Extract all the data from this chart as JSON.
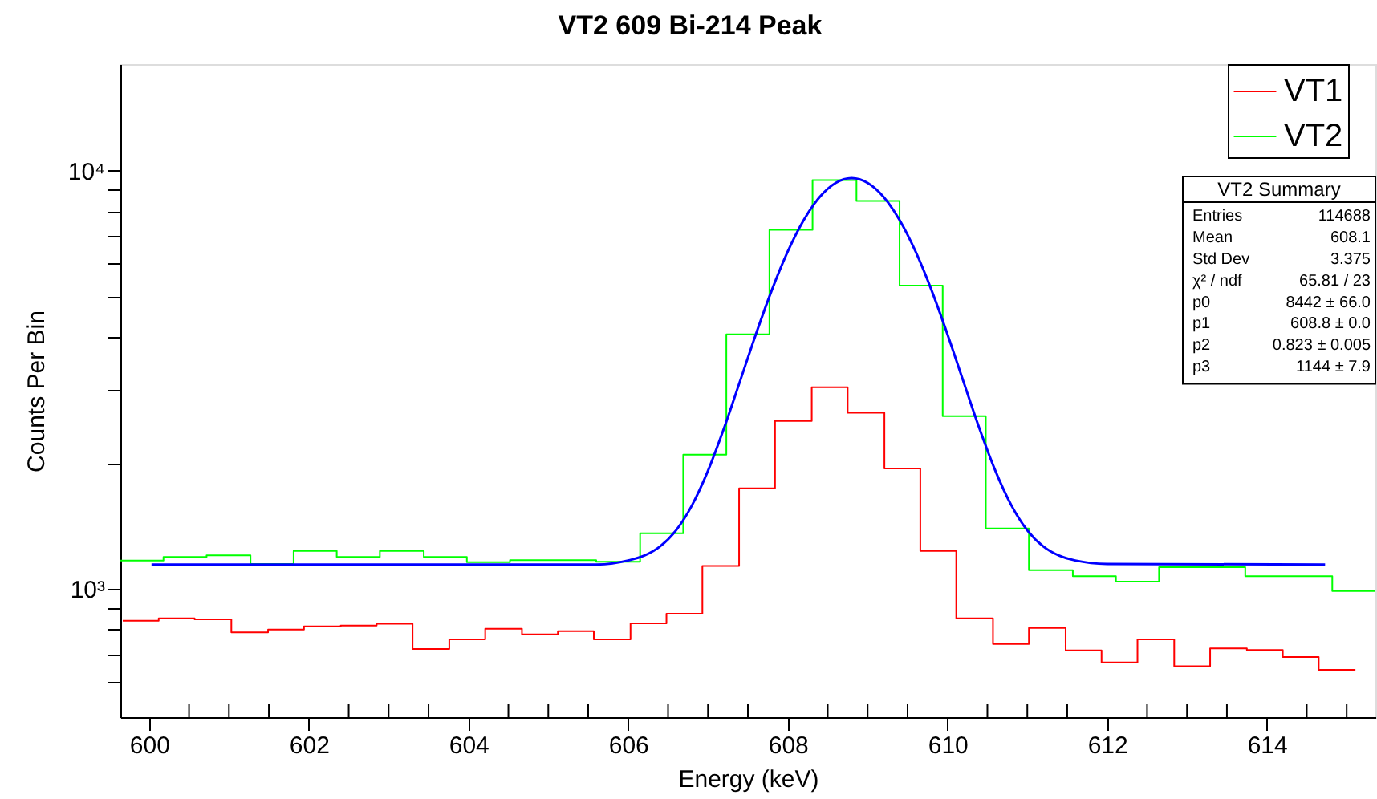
{
  "chart_data": {
    "type": "histogram",
    "title": "VT2 609 Bi-214 Peak",
    "xlabel": "Energy (keV)",
    "ylabel": "Counts Per Bin",
    "xlim": [
      599.64,
      615.36
    ],
    "xticks": [
      600,
      {
        "value": 600.5,
        "label": null
      },
      {
        "value": 601,
        "label": null
      },
      {
        "value": 601.5,
        "label": null
      },
      602,
      {
        "value": 602.5,
        "label": null
      },
      {
        "value": 603,
        "label": null
      },
      {
        "value": 603.5,
        "label": null
      },
      604,
      {
        "value": 604.5,
        "label": null
      },
      {
        "value": 605,
        "label": null
      },
      {
        "value": 605.5,
        "label": null
      },
      606,
      {
        "value": 606.5,
        "label": null
      },
      {
        "value": 607,
        "label": null
      },
      {
        "value": 607.5,
        "label": null
      },
      608,
      {
        "value": 608.5,
        "label": null
      },
      {
        "value": 609,
        "label": null
      },
      {
        "value": 609.5,
        "label": null
      },
      610,
      {
        "value": 610.5,
        "label": null
      },
      {
        "value": 611,
        "label": null
      },
      {
        "value": 611.5,
        "label": null
      },
      612,
      {
        "value": 612.5,
        "label": null
      },
      {
        "value": 613,
        "label": null
      },
      {
        "value": 613.5,
        "label": null
      },
      614,
      {
        "value": 614.5,
        "label": null
      },
      {
        "value": 615,
        "label": null
      }
    ],
    "ylim": [
      494,
      17950
    ],
    "log": "y",
    "yticks": [
      {
        "value": 600,
        "label": null
      },
      {
        "value": 700,
        "label": null
      },
      {
        "value": 800,
        "label": null
      },
      {
        "value": 900,
        "label": null
      },
      {
        "value": 1000,
        "label": "10³"
      },
      {
        "value": 2000,
        "label": null
      },
      {
        "value": 3000,
        "label": null
      },
      {
        "value": 4000,
        "label": null
      },
      {
        "value": 5000,
        "label": null
      },
      {
        "value": 6000,
        "label": null
      },
      {
        "value": 7000,
        "label": null
      },
      {
        "value": 8000,
        "label": null
      },
      {
        "value": 9000,
        "label": null
      },
      {
        "value": 10000,
        "label": "10⁴"
      }
    ],
    "grid": false,
    "legend": "top right",
    "series": [
      {
        "name": "VT1",
        "color": "#ff0000",
        "bins": [
          599.67,
          600.12,
          600.57,
          601.03,
          601.49,
          601.94,
          602.4,
          602.85,
          603.3,
          603.76,
          604.21,
          604.67,
          605.12,
          605.57,
          606.03,
          606.48,
          606.93,
          607.39,
          607.84,
          608.3,
          608.75,
          609.21,
          609.66,
          610.11,
          610.57,
          611.02,
          611.48,
          611.93,
          612.38,
          612.84,
          613.29,
          613.75,
          614.2,
          614.65,
          615.11
        ],
        "values": [
          840,
          851,
          846,
          788,
          800,
          814,
          818,
          826,
          719,
          758,
          804,
          779,
          793,
          758,
          828,
          873,
          1135,
          1740,
          2520,
          3034,
          2636,
          1940,
          1233,
          851,
          739,
          807,
          713,
          668,
          758,
          654,
          721,
          715,
          688,
          641
        ]
      },
      {
        "name": "VT2",
        "color": "#00ff00",
        "bins": [
          599.64,
          600.18,
          600.72,
          601.27,
          601.81,
          602.35,
          602.89,
          603.44,
          603.98,
          604.52,
          605.06,
          605.6,
          606.15,
          606.69,
          607.23,
          607.77,
          608.31,
          608.86,
          609.4,
          609.94,
          610.48,
          611.02,
          611.57,
          612.11,
          612.65,
          613.19,
          613.73,
          614.28,
          614.82,
          615.36
        ],
        "values": [
          1169,
          1193,
          1204,
          1148,
          1233,
          1193,
          1233,
          1193,
          1159,
          1172,
          1172,
          1162,
          1359,
          2094,
          4062,
          7215,
          9486,
          8453,
          5309,
          2589,
          1395,
          1109,
          1073,
          1042,
          1128,
          1128,
          1073,
          1073,
          989
        ]
      },
      {
        "type": "line",
        "color": "#0000ff",
        "x": [
          600.03,
          605.6,
          606.0,
          606.2,
          606.4,
          606.6,
          606.8,
          607.0,
          607.2,
          607.4,
          607.6,
          607.8,
          608.0,
          608.2,
          608.4,
          608.6,
          608.8,
          609.0,
          609.2,
          609.4,
          609.6,
          609.8,
          610.0,
          610.2,
          610.4,
          610.6,
          610.8,
          611.0,
          611.2,
          611.4,
          611.6,
          612.0,
          614.73
        ],
        "values": [
          1144,
          1144,
          1170,
          1201,
          1264,
          1381,
          1585,
          1916,
          2419,
          3131,
          4061,
          5179,
          6407,
          7616,
          8646,
          9341,
          9586,
          9341,
          8646,
          7616,
          6407,
          5179,
          4061,
          3131,
          2419,
          1916,
          1585,
          1381,
          1264,
          1201,
          1170,
          1148,
          1144
        ]
      }
    ],
    "annotations": [
      "VT2 Summary",
      "Entries",
      "114688",
      "Mean",
      "608.1",
      "Std Dev",
      "3.375",
      "χ² / ndf",
      "65.81 / 23",
      "p0",
      "8442 ± 66.0",
      "p1",
      "608.8 ± 0.0",
      "p2",
      "0.823 ± 0.005",
      "p3",
      "1144 ± 7.9"
    ]
  }
}
